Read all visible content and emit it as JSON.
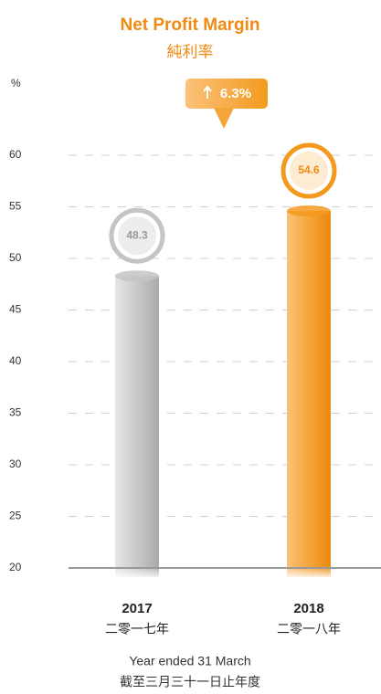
{
  "chart_data": {
    "type": "bar",
    "title": "Net Profit Margin",
    "subtitle": "純利率",
    "y_unit": "%",
    "annotation": "6.3%",
    "categories": [
      "2017",
      "2018"
    ],
    "categories_zh": [
      "二零一七年",
      "二零一八年"
    ],
    "values": [
      48.3,
      54.6
    ],
    "colors": [
      "#c4c4c4",
      "#f39a1e"
    ],
    "x_label": "Year ended 31 March",
    "x_label_zh": "截至三月三十一日止年度",
    "ylim": [
      20,
      60
    ],
    "yticks": [
      20,
      25,
      30,
      35,
      40,
      45,
      50,
      55,
      60
    ],
    "grid": true
  }
}
